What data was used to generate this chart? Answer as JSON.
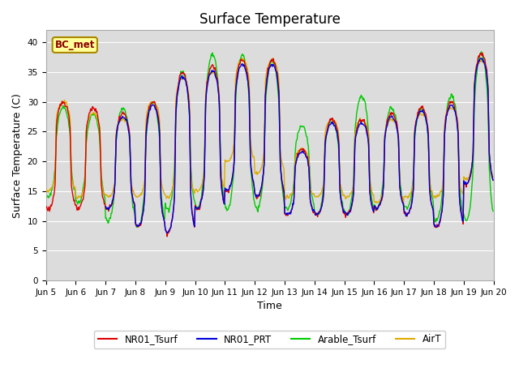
{
  "title": "Surface Temperature",
  "ylabel": "Surface Temperature (C)",
  "xlabel": "Time",
  "annotation": "BC_met",
  "ylim": [
    0,
    42
  ],
  "yticks": [
    0,
    5,
    10,
    15,
    20,
    25,
    30,
    35,
    40
  ],
  "series_colors": {
    "NR01_Tsurf": "#dd0000",
    "NR01_PRT": "#0000dd",
    "Arable_Tsurf": "#00cc00",
    "AirT": "#ddaa00"
  },
  "plot_bg": "#dcdcdc",
  "fig_bg": "#ffffff",
  "linewidth": 1.0,
  "figsize": [
    6.4,
    4.8
  ],
  "dpi": 100,
  "legend_labels": [
    "NR01_Tsurf",
    "NR01_PRT",
    "Arable_Tsurf",
    "AirT"
  ],
  "day_peaks": [
    30,
    29,
    28,
    30,
    35,
    36,
    37,
    37,
    22,
    27,
    27,
    28,
    29,
    30,
    38
  ],
  "day_troughs": [
    12,
    12,
    12,
    9,
    8,
    12,
    15,
    14,
    11,
    11,
    11,
    12,
    11,
    9,
    16
  ],
  "arable_peaks": [
    29,
    28,
    29,
    30,
    35,
    38,
    38,
    37,
    26,
    27,
    31,
    29,
    29,
    31,
    38
  ],
  "arable_troughs": [
    14,
    13,
    10,
    9,
    12,
    12,
    12,
    12,
    12,
    11,
    11,
    12,
    12,
    10,
    10
  ],
  "air_peaks": [
    30,
    28,
    27,
    30,
    34,
    35,
    37,
    37,
    22,
    27,
    27,
    27,
    28,
    29,
    37
  ],
  "air_troughs": [
    15,
    14,
    14,
    14,
    14,
    15,
    20,
    18,
    14,
    14,
    14,
    13,
    14,
    14,
    17
  ]
}
